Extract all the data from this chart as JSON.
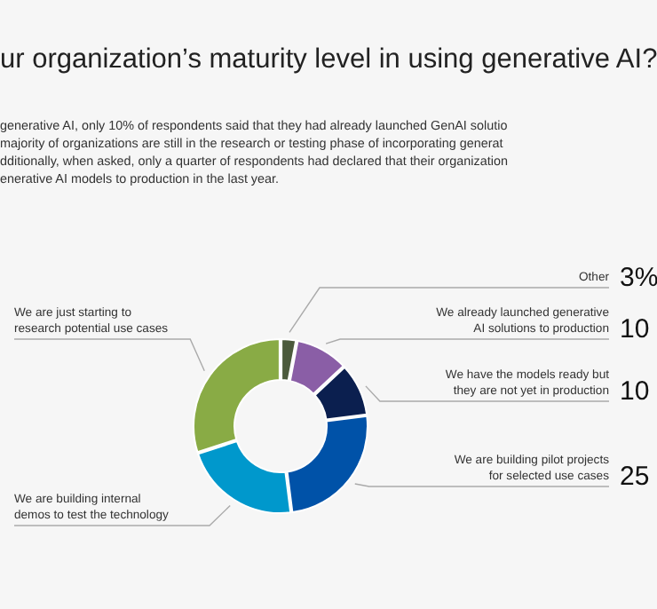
{
  "chart_data": {
    "type": "donut",
    "title": "ur organization’s maturity level in using generative AI?",
    "subtitle": "generative AI, only 10% of respondents said that they had already launched GenAI solutio\nmajority of organizations are still in the research or testing phase of incorporating generat\ndditionally, when asked, only a quarter of respondents had declared that their organization\nenerative AI models to production in the last year.",
    "categories": [
      "Other",
      "We already launched generative AI solutions to production",
      "We have the models ready but they are not yet in production",
      "We are building pilot projects for selected use cases",
      "We are building internal demos to test the technology",
      "We are just starting to research potential use cases"
    ],
    "values": [
      3,
      10,
      10,
      25,
      22,
      30
    ],
    "colors": [
      "#4b5a3c",
      "#8a5ea6",
      "#0b1f4f",
      "#0052a8",
      "#0098cc",
      "#89ab45"
    ],
    "value_labels": [
      "3%",
      "10",
      "10",
      "25",
      null,
      null
    ]
  }
}
